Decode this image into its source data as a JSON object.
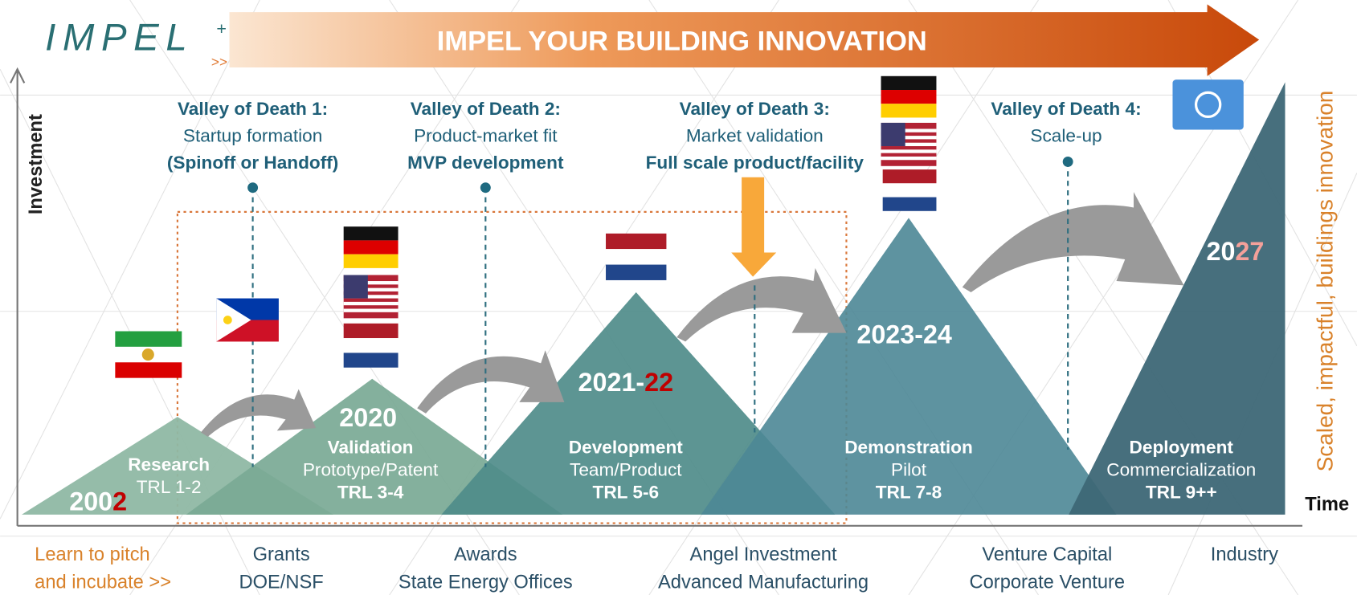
{
  "logo": {
    "name": "IMPEL",
    "plus": "+",
    "chevrons": ">>"
  },
  "banner": "IMPEL YOUR BUILDING INNOVATION",
  "axes": {
    "y": "Investment",
    "x": "Time"
  },
  "side_label": "Scaled, impactful, buildings innovation",
  "valleys": [
    {
      "title": "Valley of Death 1:",
      "lines": [
        "Startup formation",
        "(Spinoff or Handoff)"
      ]
    },
    {
      "title": "Valley of Death 2:",
      "lines": [
        "Product-market fit",
        "MVP development"
      ]
    },
    {
      "title": "Valley of Death 3:",
      "lines": [
        "Market validation",
        "Full scale product/facility"
      ]
    },
    {
      "title": "Valley of Death 4:",
      "lines": [
        "Scale-up"
      ]
    }
  ],
  "stages": [
    {
      "name": "Research",
      "lines": [
        "TRL 1-2"
      ]
    },
    {
      "name": "Validation",
      "lines": [
        "Prototype/Patent",
        "TRL 3-4"
      ]
    },
    {
      "name": "Development",
      "lines": [
        "Team/Product",
        "TRL 5-6"
      ]
    },
    {
      "name": "Demonstration",
      "lines": [
        "Pilot",
        "TRL 7-8"
      ]
    },
    {
      "name": "Deployment",
      "lines": [
        "Commercialization",
        "TRL 9++"
      ]
    }
  ],
  "years": [
    {
      "text": "200",
      "highlight": "2",
      "highlight_color": "#c00000"
    },
    {
      "text": "2020"
    },
    {
      "text": "2021-",
      "highlight": "22",
      "highlight_color": "#c00000"
    },
    {
      "text": "2023-24"
    },
    {
      "text": "20",
      "highlight": "27",
      "highlight_color": "#f4a09a"
    }
  ],
  "funding": [
    {
      "lines": [
        "Learn to pitch",
        "and incubate >>"
      ]
    },
    {
      "lines": [
        "Grants",
        "DOE/NSF"
      ]
    },
    {
      "lines": [
        "Awards",
        "State Energy Offices"
      ]
    },
    {
      "lines": [
        "Angel Investment",
        "Advanced Manufacturing"
      ]
    },
    {
      "lines": [
        "Venture Capital",
        "Corporate Venture"
      ]
    },
    {
      "lines": [
        "Industry"
      ]
    }
  ]
}
